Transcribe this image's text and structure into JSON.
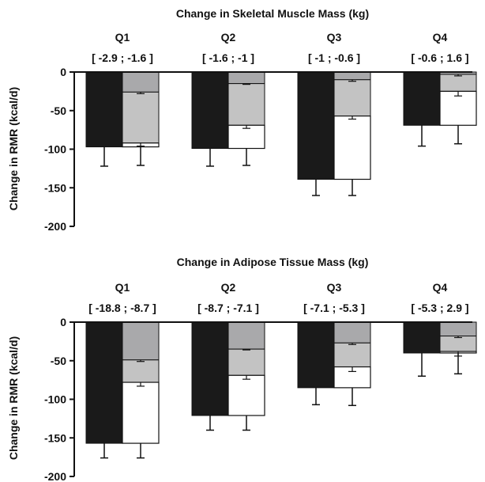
{
  "colors": {
    "measured": "#1a1a1a",
    "component_top": "#a9a9ab",
    "component_mid": "#c3c3c3",
    "component_bottom": "#ffffff",
    "axis": "#111111"
  },
  "chart_data": [
    {
      "type": "bar",
      "title": "Change in Skeletal Muscle Mass (kg)",
      "ylabel": "Change in RMR (kcal/d)",
      "xlabel": "",
      "ylim": [
        -200,
        0
      ],
      "yticks": [
        "0",
        "-50",
        "-100",
        "-150",
        "-200"
      ],
      "ytick_values": [
        0,
        -50,
        -100,
        -150,
        -200
      ],
      "categories": [
        "Q1",
        "Q2",
        "Q3",
        "Q4"
      ],
      "ranges": [
        "[ -2.9 ; -1.6 ]",
        "[ -1.6 ; -1 ]",
        "[ -1 ; -0.6 ]",
        "[ -0.6 ; 1.6 ]"
      ],
      "series": [
        {
          "values": [
            -97,
            -99,
            -139,
            -69
          ],
          "error_to": [
            -122,
            -122,
            -160,
            -96
          ]
        },
        {
          "values": [
            -97,
            -99,
            -139,
            -69
          ],
          "error_to": [
            -121,
            -121,
            -160,
            -93
          ],
          "segment_boundaries": [
            [
              -26,
              -92
            ],
            [
              -15,
              -69
            ],
            [
              -10,
              -57
            ],
            [
              -3,
              -25
            ]
          ],
          "boundary_errors": [
            [
              -28,
              -96
            ],
            [
              -16,
              -73
            ],
            [
              -12,
              -61
            ],
            [
              -5,
              -31
            ]
          ]
        }
      ]
    },
    {
      "type": "bar",
      "title": "Change in Adipose Tissue Mass (kg)",
      "ylabel": "Change in RMR (kcal/d)",
      "xlabel": "",
      "ylim": [
        -200,
        0
      ],
      "yticks": [
        "0",
        "-50",
        "-100",
        "-150",
        "-200"
      ],
      "ytick_values": [
        0,
        -50,
        -100,
        -150,
        -200
      ],
      "categories": [
        "Q1",
        "Q2",
        "Q3",
        "Q4"
      ],
      "ranges": [
        "[ -18.8 ; -8.7 ]",
        "[ -8.7 ; -7.1 ]",
        "[ -7.1 ; -5.3 ]",
        "[ -5.3 ; 2.9 ]"
      ],
      "series": [
        {
          "values": [
            -157,
            -121,
            -85,
            -40
          ],
          "error_to": [
            -176,
            -140,
            -107,
            -70
          ]
        },
        {
          "values": [
            -157,
            -121,
            -85,
            -40
          ],
          "error_to": [
            -176,
            -140,
            -108,
            -67
          ],
          "segment_boundaries": [
            [
              -49,
              -78
            ],
            [
              -35,
              -69
            ],
            [
              -27,
              -58
            ],
            [
              -18,
              -38
            ]
          ],
          "boundary_errors": [
            [
              -51,
              -83
            ],
            [
              -36,
              -74
            ],
            [
              -29,
              -64
            ],
            [
              -20,
              -44
            ]
          ]
        }
      ]
    }
  ]
}
